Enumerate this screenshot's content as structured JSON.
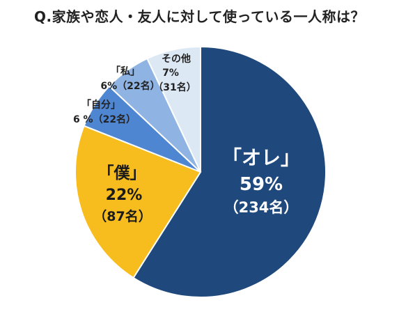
{
  "chart_data": {
    "type": "pie",
    "title": "Q.家族や恋人・友人に対して使っている一人称は？",
    "slices": [
      {
        "label": "「オレ」",
        "percent_label": "59%",
        "count_label": "（234名）",
        "value": 59,
        "count": 234,
        "color": "#1f497d"
      },
      {
        "label": "「僕」",
        "percent_label": "22%",
        "count_label": "（87名）",
        "value": 22,
        "count": 87,
        "color": "#f7bd1e"
      },
      {
        "label": "「自分」",
        "percent_label": "6 %（22名）",
        "value": 6,
        "count": 22,
        "color": "#4f86d1"
      },
      {
        "label": "「私」",
        "percent_label": "6%（22名）",
        "value": 6,
        "count": 22,
        "color": "#8fb4e3"
      },
      {
        "label": "その他",
        "percent_label": "7%",
        "count_label": "（31名）",
        "value": 7,
        "count": 31,
        "color": "#dce9f5"
      }
    ],
    "legend": "none"
  }
}
